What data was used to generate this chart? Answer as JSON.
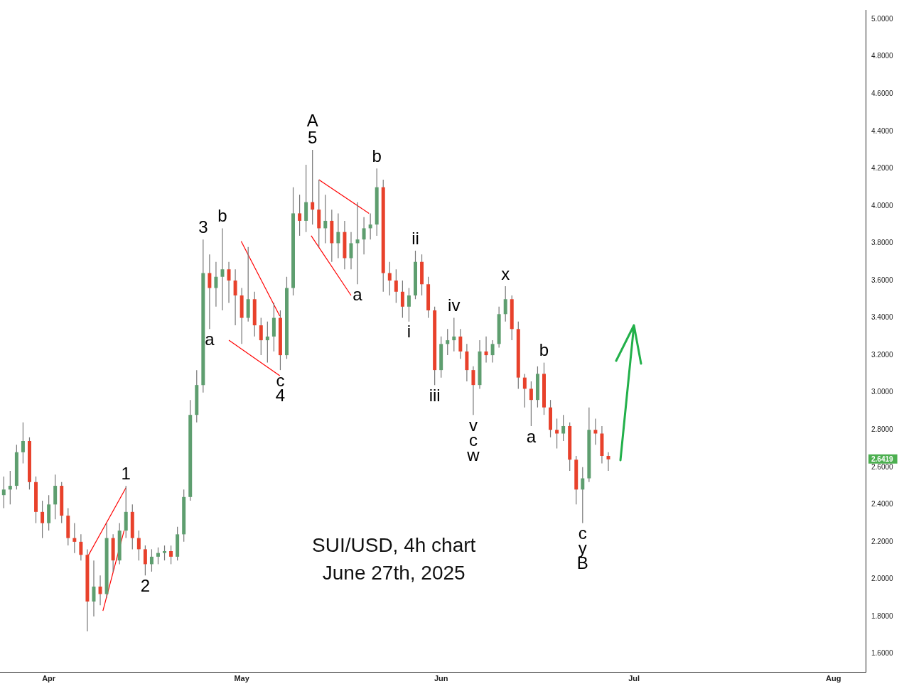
{
  "chart_data": {
    "type": "candlestick",
    "title": "SUI/USD, 4h chart",
    "subtitle": "June 27th, 2025",
    "x": [
      "2025-03-25",
      "2025-03-26",
      "2025-03-27",
      "2025-03-28",
      "2025-03-29",
      "2025-03-30",
      "2025-03-31",
      "2025-04-01",
      "2025-04-02",
      "2025-04-03",
      "2025-04-04",
      "2025-04-05",
      "2025-04-06",
      "2025-04-07",
      "2025-04-08",
      "2025-04-09",
      "2025-04-10",
      "2025-04-11",
      "2025-04-12",
      "2025-04-13",
      "2025-04-14",
      "2025-04-15",
      "2025-04-16",
      "2025-04-17",
      "2025-04-18",
      "2025-04-19",
      "2025-04-20",
      "2025-04-21",
      "2025-04-22",
      "2025-04-23",
      "2025-04-24",
      "2025-04-25",
      "2025-04-26",
      "2025-04-27",
      "2025-04-28",
      "2025-04-29",
      "2025-04-30",
      "2025-05-01",
      "2025-05-02",
      "2025-05-03",
      "2025-05-04",
      "2025-05-05",
      "2025-05-06",
      "2025-05-07",
      "2025-05-08",
      "2025-05-09",
      "2025-05-10",
      "2025-05-11",
      "2025-05-12",
      "2025-05-13",
      "2025-05-14",
      "2025-05-15",
      "2025-05-16",
      "2025-05-17",
      "2025-05-18",
      "2025-05-19",
      "2025-05-20",
      "2025-05-21",
      "2025-05-22",
      "2025-05-23",
      "2025-05-24",
      "2025-05-25",
      "2025-05-26",
      "2025-05-27",
      "2025-05-28",
      "2025-05-29",
      "2025-05-30",
      "2025-05-31",
      "2025-06-01",
      "2025-06-02",
      "2025-06-03",
      "2025-06-04",
      "2025-06-05",
      "2025-06-06",
      "2025-06-07",
      "2025-06-08",
      "2025-06-09",
      "2025-06-10",
      "2025-06-11",
      "2025-06-12",
      "2025-06-13",
      "2025-06-14",
      "2025-06-15",
      "2025-06-16",
      "2025-06-17",
      "2025-06-18",
      "2025-06-19",
      "2025-06-20",
      "2025-06-21",
      "2025-06-22",
      "2025-06-23",
      "2025-06-24",
      "2025-06-25",
      "2025-06-26",
      "2025-06-27"
    ],
    "ohlc": [
      [
        2.45,
        2.55,
        2.38,
        2.48
      ],
      [
        2.48,
        2.58,
        2.4,
        2.5
      ],
      [
        2.5,
        2.72,
        2.48,
        2.68
      ],
      [
        2.68,
        2.84,
        2.62,
        2.74
      ],
      [
        2.74,
        2.76,
        2.48,
        2.52
      ],
      [
        2.52,
        2.55,
        2.3,
        2.36
      ],
      [
        2.36,
        2.42,
        2.22,
        2.3
      ],
      [
        2.3,
        2.45,
        2.26,
        2.4
      ],
      [
        2.4,
        2.56,
        2.32,
        2.5
      ],
      [
        2.5,
        2.52,
        2.3,
        2.34
      ],
      [
        2.34,
        2.38,
        2.18,
        2.22
      ],
      [
        2.22,
        2.3,
        2.14,
        2.2
      ],
      [
        2.2,
        2.24,
        2.1,
        2.13
      ],
      [
        2.13,
        2.16,
        1.72,
        1.88
      ],
      [
        1.88,
        2.1,
        1.8,
        1.96
      ],
      [
        1.96,
        2.02,
        1.86,
        1.92
      ],
      [
        1.92,
        2.3,
        1.9,
        2.22
      ],
      [
        2.22,
        2.24,
        2.04,
        2.1
      ],
      [
        2.1,
        2.3,
        2.08,
        2.26
      ],
      [
        2.26,
        2.5,
        2.22,
        2.36
      ],
      [
        2.36,
        2.4,
        2.16,
        2.22
      ],
      [
        2.22,
        2.26,
        2.1,
        2.16
      ],
      [
        2.16,
        2.18,
        2.02,
        2.08
      ],
      [
        2.08,
        2.16,
        2.04,
        2.12
      ],
      [
        2.12,
        2.17,
        2.08,
        2.14
      ],
      [
        2.14,
        2.18,
        2.1,
        2.15
      ],
      [
        2.15,
        2.18,
        2.08,
        2.12
      ],
      [
        2.12,
        2.28,
        2.1,
        2.24
      ],
      [
        2.24,
        2.48,
        2.2,
        2.44
      ],
      [
        2.44,
        2.96,
        2.42,
        2.88
      ],
      [
        2.88,
        3.12,
        2.84,
        3.04
      ],
      [
        3.04,
        3.82,
        3.0,
        3.64
      ],
      [
        3.64,
        3.74,
        3.34,
        3.56
      ],
      [
        3.56,
        3.7,
        3.46,
        3.62
      ],
      [
        3.62,
        3.88,
        3.44,
        3.66
      ],
      [
        3.66,
        3.7,
        3.48,
        3.6
      ],
      [
        3.6,
        3.66,
        3.36,
        3.52
      ],
      [
        3.52,
        3.56,
        3.26,
        3.4
      ],
      [
        3.4,
        3.78,
        3.38,
        3.5
      ],
      [
        3.5,
        3.54,
        3.3,
        3.36
      ],
      [
        3.36,
        3.4,
        3.2,
        3.28
      ],
      [
        3.28,
        3.38,
        3.16,
        3.3
      ],
      [
        3.3,
        3.48,
        3.22,
        3.4
      ],
      [
        3.4,
        3.44,
        3.12,
        3.2
      ],
      [
        3.2,
        3.62,
        3.18,
        3.56
      ],
      [
        3.56,
        4.1,
        3.52,
        3.96
      ],
      [
        3.96,
        4.06,
        3.84,
        3.92
      ],
      [
        3.92,
        4.22,
        3.86,
        4.02
      ],
      [
        4.02,
        4.3,
        3.9,
        3.98
      ],
      [
        3.98,
        4.14,
        3.78,
        3.88
      ],
      [
        3.88,
        4.06,
        3.8,
        3.92
      ],
      [
        3.92,
        3.98,
        3.7,
        3.8
      ],
      [
        3.8,
        3.96,
        3.72,
        3.86
      ],
      [
        3.86,
        3.92,
        3.66,
        3.72
      ],
      [
        3.72,
        3.86,
        3.66,
        3.8
      ],
      [
        3.8,
        4.02,
        3.58,
        3.82
      ],
      [
        3.82,
        3.94,
        3.74,
        3.88
      ],
      [
        3.88,
        3.96,
        3.82,
        3.9
      ],
      [
        3.9,
        4.2,
        3.84,
        4.1
      ],
      [
        4.1,
        4.14,
        3.54,
        3.64
      ],
      [
        3.64,
        3.7,
        3.52,
        3.6
      ],
      [
        3.6,
        3.66,
        3.48,
        3.54
      ],
      [
        3.54,
        3.6,
        3.4,
        3.46
      ],
      [
        3.46,
        3.56,
        3.38,
        3.52
      ],
      [
        3.52,
        3.76,
        3.5,
        3.7
      ],
      [
        3.7,
        3.74,
        3.52,
        3.58
      ],
      [
        3.58,
        3.62,
        3.4,
        3.44
      ],
      [
        3.44,
        3.46,
        3.04,
        3.12
      ],
      [
        3.12,
        3.3,
        3.08,
        3.26
      ],
      [
        3.26,
        3.34,
        3.2,
        3.28
      ],
      [
        3.28,
        3.4,
        3.22,
        3.3
      ],
      [
        3.3,
        3.34,
        3.18,
        3.22
      ],
      [
        3.22,
        3.26,
        3.06,
        3.12
      ],
      [
        3.12,
        3.14,
        2.88,
        3.04
      ],
      [
        3.04,
        3.28,
        3.02,
        3.22
      ],
      [
        3.22,
        3.3,
        3.16,
        3.2
      ],
      [
        3.2,
        3.28,
        3.16,
        3.26
      ],
      [
        3.26,
        3.46,
        3.24,
        3.42
      ],
      [
        3.42,
        3.57,
        3.38,
        3.5
      ],
      [
        3.5,
        3.52,
        3.28,
        3.34
      ],
      [
        3.34,
        3.38,
        3.02,
        3.08
      ],
      [
        3.08,
        3.1,
        2.92,
        3.02
      ],
      [
        3.02,
        3.06,
        2.82,
        2.96
      ],
      [
        2.96,
        3.14,
        2.92,
        3.1
      ],
      [
        3.1,
        3.16,
        2.88,
        2.92
      ],
      [
        2.92,
        2.96,
        2.76,
        2.8
      ],
      [
        2.8,
        2.86,
        2.7,
        2.78
      ],
      [
        2.78,
        2.88,
        2.74,
        2.82
      ],
      [
        2.82,
        2.84,
        2.58,
        2.64
      ],
      [
        2.64,
        2.66,
        2.4,
        2.48
      ],
      [
        2.48,
        2.6,
        2.3,
        2.54
      ],
      [
        2.54,
        2.92,
        2.52,
        2.8
      ],
      [
        2.8,
        2.86,
        2.72,
        2.78
      ],
      [
        2.78,
        2.82,
        2.62,
        2.66
      ],
      [
        2.66,
        2.68,
        2.58,
        2.6419
      ]
    ],
    "series": [
      {
        "type": "line",
        "color": "#ff0000",
        "x": [
          "2025-04-07T01:00",
          "2025-04-13"
        ],
        "values": [
          2.12,
          2.49
        ]
      },
      {
        "type": "line",
        "color": "#ff0000",
        "x": [
          "2025-04-09T10:00",
          "2025-04-12T17:00"
        ],
        "values": [
          1.83,
          2.26
        ]
      },
      {
        "type": "line",
        "color": "#ff0000",
        "x": [
          "2025-04-29",
          "2025-05-06T22:00"
        ],
        "values": [
          3.28,
          3.09
        ]
      },
      {
        "type": "line",
        "color": "#ff0000",
        "x": [
          "2025-04-30T22:00",
          "2025-05-06T22:00"
        ],
        "values": [
          3.81,
          3.41
        ]
      },
      {
        "type": "line",
        "color": "#ff0000",
        "x": [
          "2025-05-13",
          "2025-05-20T19:00"
        ],
        "values": [
          4.14,
          3.96
        ]
      },
      {
        "type": "line",
        "color": "#ff0000",
        "x": [
          "2025-05-11T19:00",
          "2025-05-18"
        ],
        "values": [
          3.84,
          3.52
        ]
      }
    ],
    "annotations": [
      {
        "text": "1",
        "x": "2025-04-13",
        "y": 2.5
      },
      {
        "text": "2",
        "x": "2025-04-16",
        "y": 2.02
      },
      {
        "text": "3",
        "x": "2025-04-25",
        "y": 3.82
      },
      {
        "text": "b",
        "x": "2025-04-28",
        "y": 3.88
      },
      {
        "text": "a",
        "x": "2025-04-26",
        "y": 3.34
      },
      {
        "text": "c",
        "x": "2025-05-07",
        "y": 3.12
      },
      {
        "text": "4",
        "x": "2025-05-07",
        "y": 3.12
      },
      {
        "text": "5",
        "x": "2025-05-12",
        "y": 4.3
      },
      {
        "text": "A",
        "x": "2025-05-12",
        "y": 4.3
      },
      {
        "text": "b",
        "x": "2025-05-22",
        "y": 4.2
      },
      {
        "text": "a",
        "x": "2025-05-19",
        "y": 3.58
      },
      {
        "text": "ii",
        "x": "2025-05-28",
        "y": 3.76
      },
      {
        "text": "i",
        "x": "2025-05-27",
        "y": 3.38
      },
      {
        "text": "iv",
        "x": "2025-06-03",
        "y": 3.4
      },
      {
        "text": "iii",
        "x": "2025-05-31",
        "y": 3.04
      },
      {
        "text": "v",
        "x": "2025-06-06",
        "y": 2.88
      },
      {
        "text": "c",
        "x": "2025-06-06",
        "y": 2.88
      },
      {
        "text": "w",
        "x": "2025-06-06",
        "y": 2.88
      },
      {
        "text": "x",
        "x": "2025-06-11",
        "y": 3.57
      },
      {
        "text": "b",
        "x": "2025-06-17",
        "y": 3.16
      },
      {
        "text": "a",
        "x": "2025-06-15",
        "y": 2.82
      },
      {
        "text": "c",
        "x": "2025-06-23",
        "y": 2.3
      },
      {
        "text": "y",
        "x": "2025-06-23",
        "y": 2.3
      },
      {
        "text": "B",
        "x": "2025-06-23",
        "y": 2.3
      }
    ],
    "xlim": [
      "2025-03-24T10:00",
      "2025-08-06"
    ],
    "xticks": [
      {
        "value": "2025-04-01",
        "label": "Apr"
      },
      {
        "value": "2025-05-01",
        "label": "May"
      },
      {
        "value": "2025-06-01",
        "label": "Jun"
      },
      {
        "value": "2025-07-01",
        "label": "Jul"
      },
      {
        "value": "2025-08-01",
        "label": "Aug"
      }
    ],
    "ylim": [
      1.5,
      5.05
    ],
    "yticks": [
      {
        "value": 1.6,
        "label": "1.6000"
      },
      {
        "value": 1.8,
        "label": "1.8000"
      },
      {
        "value": 2.0,
        "label": "2.0000"
      },
      {
        "value": 2.2,
        "label": "2.2000"
      },
      {
        "value": 2.4,
        "label": "2.4000"
      },
      {
        "value": 2.6,
        "label": "2.6000"
      },
      {
        "value": 2.6419,
        "label": "2.6419"
      },
      {
        "value": 2.8,
        "label": "2.8000"
      },
      {
        "value": 3.0,
        "label": "3.0000"
      },
      {
        "value": 3.2,
        "label": "3.2000"
      },
      {
        "value": 3.4,
        "label": "3.4000"
      },
      {
        "value": 3.6,
        "label": "3.6000"
      },
      {
        "value": 3.8,
        "label": "3.8000"
      },
      {
        "value": 4.0,
        "label": "4.0000"
      },
      {
        "value": 4.2,
        "label": "4.2000"
      },
      {
        "value": 4.4,
        "label": "4.4000"
      },
      {
        "value": 4.6,
        "label": "4.6000"
      },
      {
        "value": 4.8,
        "label": "4.8000"
      },
      {
        "value": 5.0,
        "label": "5.0000"
      }
    ]
  }
}
